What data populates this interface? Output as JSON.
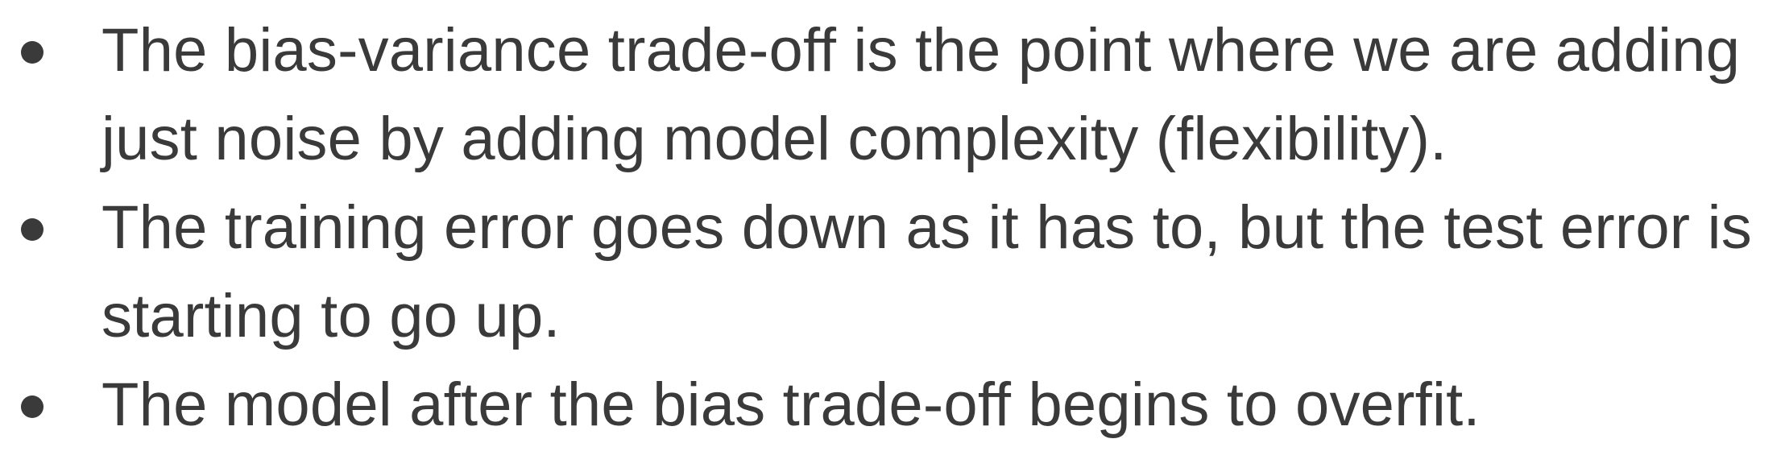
{
  "content": {
    "bullets": [
      {
        "text": "The bias-variance trade-off is the point where we are adding just noise by adding model complexity (flexibility)."
      },
      {
        "text": "The training error goes down as it has to, but the test error is starting to go up."
      },
      {
        "text": "The model after the bias trade-off begins to overfit."
      }
    ]
  }
}
